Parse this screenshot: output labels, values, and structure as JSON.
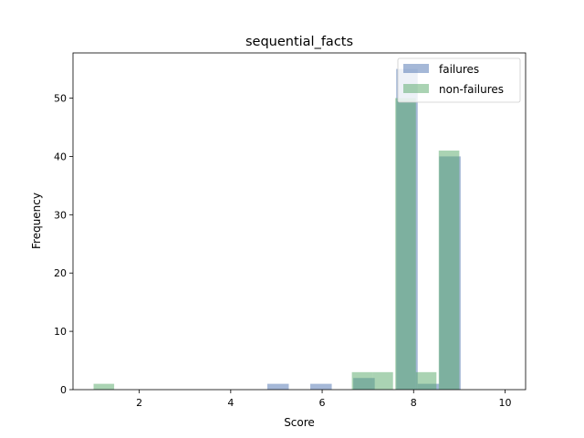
{
  "chart_data": {
    "type": "histogram",
    "title": "sequential_facts",
    "xlabel": "Score",
    "ylabel": "Frequency",
    "xlim": [
      0.55,
      10.45
    ],
    "ylim": [
      0,
      57.75
    ],
    "xticks": [
      2,
      4,
      6,
      8,
      10
    ],
    "yticks": [
      0,
      10,
      20,
      30,
      40,
      50
    ],
    "legend_position": "top-right",
    "series": [
      {
        "name": "failures",
        "color": "#4c72b0",
        "bins": [
          {
            "x0": 4.8,
            "x1": 5.27,
            "count": 1
          },
          {
            "x0": 5.74,
            "x1": 6.21,
            "count": 1
          },
          {
            "x0": 6.68,
            "x1": 7.15,
            "count": 2
          },
          {
            "x0": 7.62,
            "x1": 8.09,
            "count": 55
          },
          {
            "x0": 8.09,
            "x1": 8.56,
            "count": 1
          },
          {
            "x0": 8.56,
            "x1": 9.03,
            "count": 40
          }
        ]
      },
      {
        "name": "non-failures",
        "color": "#55a868",
        "bins": [
          {
            "x0": 1.0,
            "x1": 1.45,
            "count": 1
          },
          {
            "x0": 6.65,
            "x1": 7.1,
            "count": 3
          },
          {
            "x0": 7.1,
            "x1": 7.55,
            "count": 3
          },
          {
            "x0": 7.6,
            "x1": 8.05,
            "count": 50
          },
          {
            "x0": 8.05,
            "x1": 8.5,
            "count": 3
          },
          {
            "x0": 8.55,
            "x1": 9.0,
            "count": 41
          }
        ]
      }
    ]
  }
}
